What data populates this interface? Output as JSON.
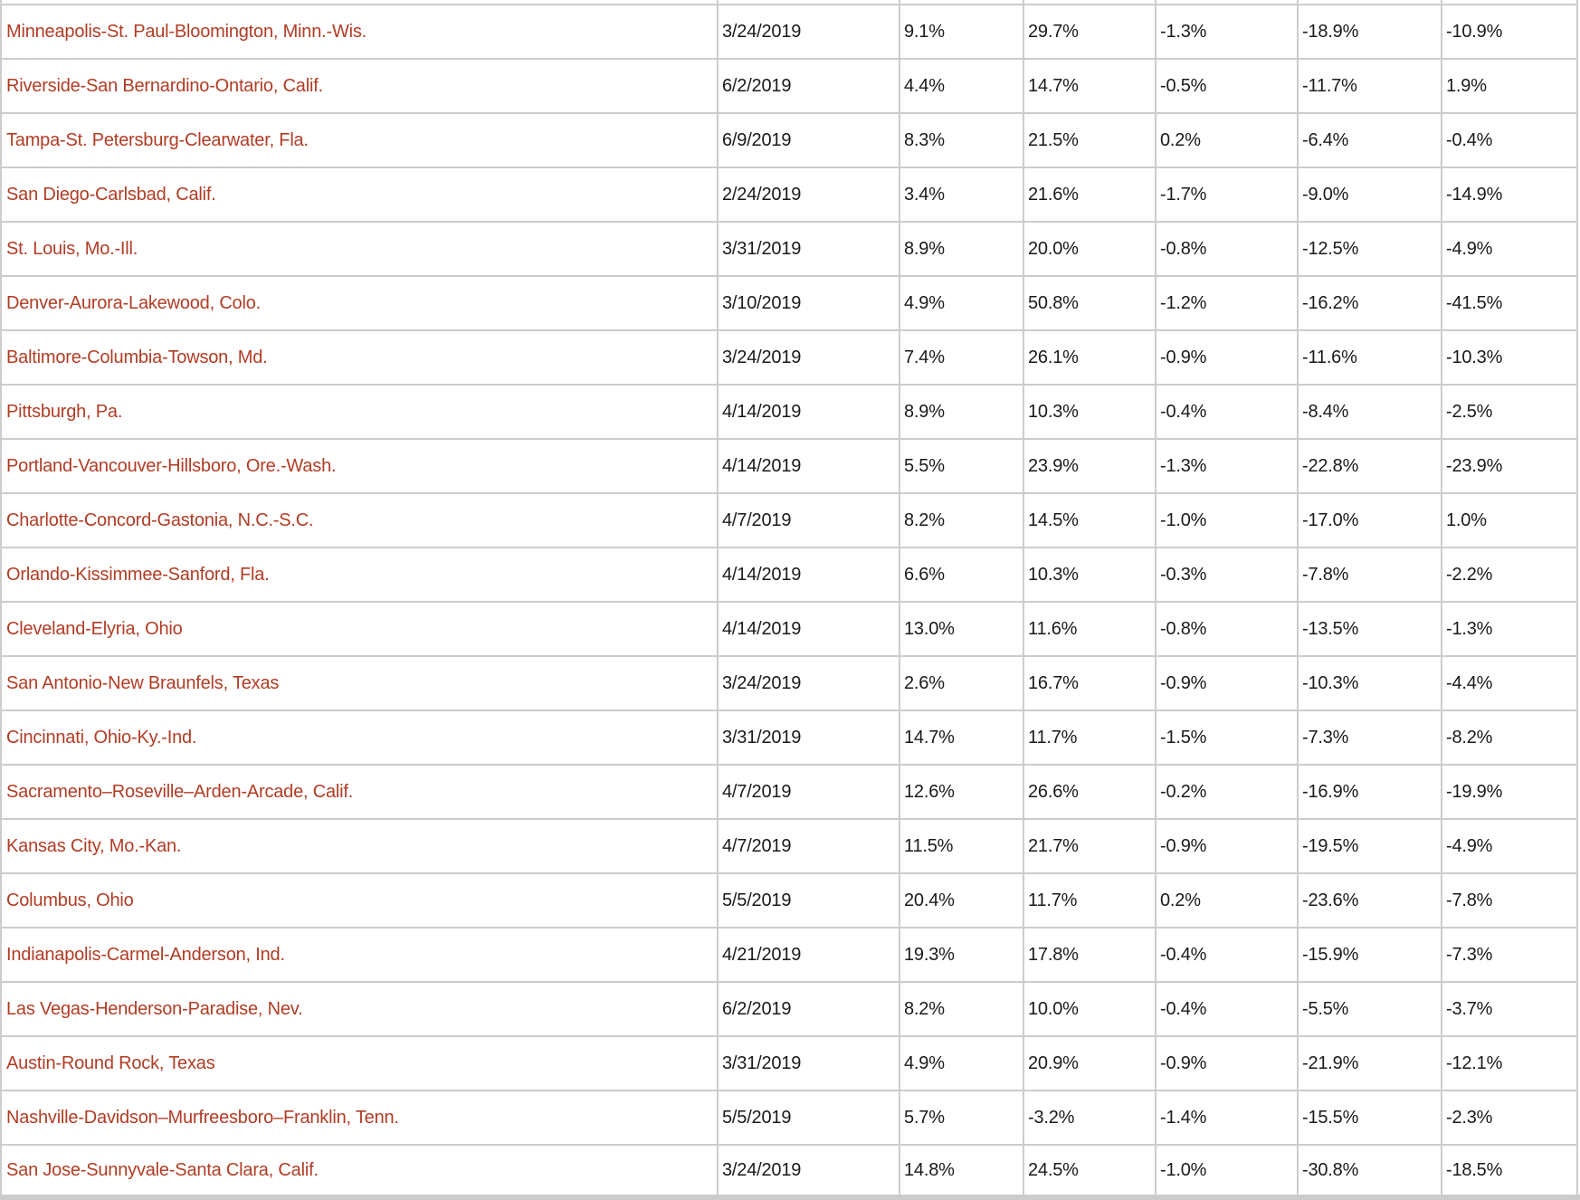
{
  "colors": {
    "metro_link_red": "#b23c24",
    "grid_border": "#cccccc",
    "value_text": "#1a1a1a",
    "background": "#ffffff",
    "bottom_strip": "#cccccc"
  },
  "chart_data": {
    "type": "table",
    "grid": "on",
    "note_columns": "7 columns: metro area (red link), date, then 5 percentage values; no header row visible in screenshot",
    "rows": [
      [
        "Minneapolis-St. Paul-Bloomington, Minn.-Wis.",
        "3/24/2019",
        "9.1%",
        "29.7%",
        "-1.3%",
        "-18.9%",
        "-10.9%"
      ],
      [
        "Riverside-San Bernardino-Ontario, Calif.",
        "6/2/2019",
        "4.4%",
        "14.7%",
        "-0.5%",
        "-11.7%",
        "1.9%"
      ],
      [
        "Tampa-St. Petersburg-Clearwater, Fla.",
        "6/9/2019",
        "8.3%",
        "21.5%",
        "0.2%",
        "-6.4%",
        "-0.4%"
      ],
      [
        "San Diego-Carlsbad, Calif.",
        "2/24/2019",
        "3.4%",
        "21.6%",
        "-1.7%",
        "-9.0%",
        "-14.9%"
      ],
      [
        "St. Louis, Mo.-Ill.",
        "3/31/2019",
        "8.9%",
        "20.0%",
        "-0.8%",
        "-12.5%",
        "-4.9%"
      ],
      [
        "Denver-Aurora-Lakewood, Colo.",
        "3/10/2019",
        "4.9%",
        "50.8%",
        "-1.2%",
        "-16.2%",
        "-41.5%"
      ],
      [
        "Baltimore-Columbia-Towson, Md.",
        "3/24/2019",
        "7.4%",
        "26.1%",
        "-0.9%",
        "-11.6%",
        "-10.3%"
      ],
      [
        "Pittsburgh, Pa.",
        "4/14/2019",
        "8.9%",
        "10.3%",
        "-0.4%",
        "-8.4%",
        "-2.5%"
      ],
      [
        "Portland-Vancouver-Hillsboro, Ore.-Wash.",
        "4/14/2019",
        "5.5%",
        "23.9%",
        "-1.3%",
        "-22.8%",
        "-23.9%"
      ],
      [
        "Charlotte-Concord-Gastonia, N.C.-S.C.",
        "4/7/2019",
        "8.2%",
        "14.5%",
        "-1.0%",
        "-17.0%",
        "1.0%"
      ],
      [
        "Orlando-Kissimmee-Sanford, Fla.",
        "4/14/2019",
        "6.6%",
        "10.3%",
        "-0.3%",
        "-7.8%",
        "-2.2%"
      ],
      [
        "Cleveland-Elyria, Ohio",
        "4/14/2019",
        "13.0%",
        "11.6%",
        "-0.8%",
        "-13.5%",
        "-1.3%"
      ],
      [
        "San Antonio-New Braunfels, Texas",
        "3/24/2019",
        "2.6%",
        "16.7%",
        "-0.9%",
        "-10.3%",
        "-4.4%"
      ],
      [
        "Cincinnati, Ohio-Ky.-Ind.",
        "3/31/2019",
        "14.7%",
        "11.7%",
        "-1.5%",
        "-7.3%",
        "-8.2%"
      ],
      [
        "Sacramento–Roseville–Arden-Arcade, Calif.",
        "4/7/2019",
        "12.6%",
        "26.6%",
        "-0.2%",
        "-16.9%",
        "-19.9%"
      ],
      [
        "Kansas City, Mo.-Kan.",
        "4/7/2019",
        "11.5%",
        "21.7%",
        "-0.9%",
        "-19.5%",
        "-4.9%"
      ],
      [
        "Columbus, Ohio",
        "5/5/2019",
        "20.4%",
        "11.7%",
        "0.2%",
        "-23.6%",
        "-7.8%"
      ],
      [
        "Indianapolis-Carmel-Anderson, Ind.",
        "4/21/2019",
        "19.3%",
        "17.8%",
        "-0.4%",
        "-15.9%",
        "-7.3%"
      ],
      [
        "Las Vegas-Henderson-Paradise, Nev.",
        "6/2/2019",
        "8.2%",
        "10.0%",
        "-0.4%",
        "-5.5%",
        "-3.7%"
      ],
      [
        "Austin-Round Rock, Texas",
        "3/31/2019",
        "4.9%",
        "20.9%",
        "-0.9%",
        "-21.9%",
        "-12.1%"
      ],
      [
        "Nashville-Davidson–Murfreesboro–Franklin, Tenn.",
        "5/5/2019",
        "5.7%",
        "-3.2%",
        "-1.4%",
        "-15.5%",
        "-2.3%"
      ],
      [
        "San Jose-Sunnyvale-Santa Clara, Calif.",
        "3/24/2019",
        "14.8%",
        "24.5%",
        "-1.0%",
        "-30.8%",
        "-18.5%"
      ]
    ]
  }
}
